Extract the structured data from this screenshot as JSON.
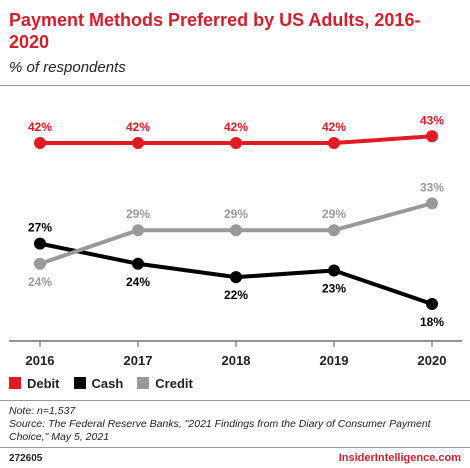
{
  "header": {
    "title": "Payment Methods Preferred by US Adults, 2016-2020",
    "subtitle": "% of respondents"
  },
  "chart_data": {
    "type": "line",
    "x": [
      "2016",
      "2017",
      "2018",
      "2019",
      "2020"
    ],
    "series": [
      {
        "name": "Debit",
        "values": [
          42,
          42,
          42,
          42,
          43
        ],
        "labels": [
          "42%",
          "42%",
          "42%",
          "42%",
          "43%"
        ],
        "color": "#e11b22"
      },
      {
        "name": "Cash",
        "values": [
          27,
          24,
          22,
          23,
          18
        ],
        "labels": [
          "27%",
          "24%",
          "22%",
          "23%",
          "18%"
        ],
        "color": "#000000"
      },
      {
        "name": "Credit",
        "values": [
          24,
          29,
          29,
          29,
          33
        ],
        "labels": [
          "24%",
          "29%",
          "29%",
          "29%",
          "33%"
        ],
        "color": "#999999"
      }
    ],
    "grid": false,
    "legend_position": "bottom-left"
  },
  "footer": {
    "note": "Note: n=1,537",
    "source": "Source: The Federal Reserve Banks, \"2021 Findings from the Diary of Consumer Payment Choice,\" May 5, 2021",
    "chart_id": "272605",
    "brand": "InsiderIntelligence.com"
  }
}
